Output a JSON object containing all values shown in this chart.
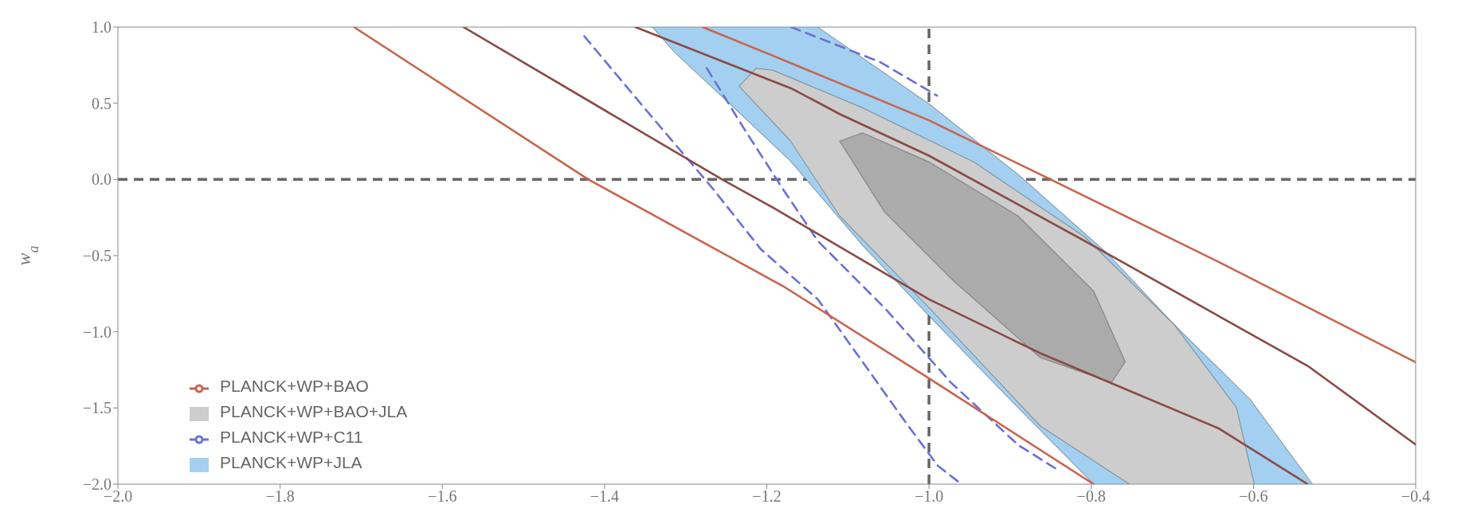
{
  "chart_data": {
    "type": "line",
    "ylabel": "w$_{a}$",
    "xlim": [
      -2.0,
      -0.4
    ],
    "xticks": [
      {
        "value": -2.0,
        "label": "−2.0"
      },
      {
        "value": -1.8,
        "label": "−1.8"
      },
      {
        "value": -1.6,
        "label": "−1.6"
      },
      {
        "value": -1.4,
        "label": "−1.4"
      },
      {
        "value": -1.2,
        "label": "−1.2"
      },
      {
        "value": -1.0,
        "label": "−1.0"
      },
      {
        "value": -0.8,
        "label": "−0.8"
      },
      {
        "value": -0.6,
        "label": "−0.6"
      },
      {
        "value": -0.4,
        "label": "−0.4"
      }
    ],
    "ylim": [
      -2.0,
      1.0
    ],
    "yticks": [
      {
        "value": -2.0,
        "label": "−2.0"
      },
      {
        "value": -1.5,
        "label": "−1.5"
      },
      {
        "value": -1.0,
        "label": "−1.0"
      },
      {
        "value": -0.5,
        "label": "−0.5"
      },
      {
        "value": 0,
        "label": "0.0"
      },
      {
        "value": 0.5,
        "label": "0.5"
      },
      {
        "value": 1.0,
        "label": "1.0"
      }
    ],
    "legend": "bottom left",
    "grid": false,
    "ref_lines": [
      {
        "axis": "x",
        "value": -1.0,
        "color": "#666666",
        "line_style": "dashed"
      },
      {
        "axis": "y",
        "value": 0,
        "color": "#666666",
        "line_style": "dashed"
      }
    ],
    "series": [
      {
        "name": "PLANCK+WP+JLA",
        "type": "area",
        "color": "#a3d0f0",
        "x": [
          -1.341,
          -1.137,
          -1.0,
          -0.89,
          -0.78,
          -0.698,
          -0.604,
          -0.527,
          -0.797,
          -0.89,
          -1.0,
          -1.082,
          -1.171,
          -1.25,
          -1.314
        ],
        "values": [
          1.0,
          1.0,
          0.497,
          0.033,
          -0.486,
          -0.951,
          -1.443,
          -2.0,
          -2.0,
          -1.5,
          -0.896,
          -0.432,
          0.121,
          0.518,
          0.835
        ]
      },
      {
        "name": "PLANCK+WP+C11",
        "line_style": "dashed",
        "color": "#6a70d6",
        "x": [
          -1.425,
          -1.346,
          -1.266,
          -1.207,
          -1.137,
          -1.082,
          -1.027,
          -0.989,
          -0.96
        ],
        "values": [
          0.94,
          0.438,
          -0.064,
          -0.46,
          -0.787,
          -1.197,
          -1.607,
          -1.88,
          -2.0
        ]
      },
      {
        "line_style": "dashed",
        "color": "#6a70d6",
        "x": [
          -1.274,
          -1.228,
          -1.18,
          -1.137,
          -1.055,
          -0.973,
          -0.89,
          -0.841
        ],
        "values": [
          0.73,
          0.333,
          -0.064,
          -0.404,
          -0.842,
          -1.333,
          -1.743,
          -1.907
        ]
      },
      {
        "line_style": "dashed",
        "color": "#6a70d6",
        "x": [
          -1.17,
          -1.06,
          -0.99
        ],
        "values": [
          1.0,
          0.77,
          0.55
        ]
      },
      {
        "name": "PLANCK+WP+BAO+JLA",
        "type": "area",
        "color": "#cdcdcd",
        "x": [
          -1.234,
          -1.213,
          -1.192,
          -1.082,
          -0.945,
          -0.808,
          -0.698,
          -0.621,
          -0.599,
          -0.753,
          -0.863,
          -1.0,
          -1.11,
          -1.171
        ],
        "values": [
          0.611,
          0.73,
          0.716,
          0.47,
          0.115,
          -0.377,
          -0.951,
          -1.497,
          -2.0,
          -2.0,
          -1.617,
          -0.842,
          -0.24,
          0.254
        ]
      },
      {
        "type": "area",
        "color": "#ababab",
        "x": [
          -1.11,
          -1.082,
          -1.0,
          -0.89,
          -0.797,
          -0.758,
          -0.775,
          -0.863,
          -0.973,
          -1.055
        ],
        "values": [
          0.251,
          0.306,
          0.115,
          -0.24,
          -0.732,
          -1.197,
          -1.333,
          -1.169,
          -0.65,
          -0.213
        ]
      },
      {
        "name": "PLANCK+WP+BAO",
        "line_style": "solid",
        "color": "#c8644e",
        "x": [
          -1.709,
          -1.42,
          -1.18,
          -1.0,
          -0.797
        ],
        "values": [
          1.0,
          0.0,
          -0.7,
          -1.306,
          -2.0
        ]
      },
      {
        "line_style": "solid",
        "color": "#c8644e",
        "x": [
          -1.279,
          -1.192,
          -1.0,
          -0.852,
          -0.643,
          -0.4
        ],
        "values": [
          1.0,
          0.811,
          0.388,
          0.005,
          -0.541,
          -1.2
        ]
      },
      {
        "line_style": "solid",
        "color": "#8a4a45",
        "x": [
          -1.574,
          -1.255,
          -1.192,
          -1.0,
          -0.863,
          -0.643,
          -0.533
        ],
        "values": [
          1.0,
          0.0,
          -0.186,
          -0.787,
          -1.14,
          -1.634,
          -2.0
        ]
      },
      {
        "line_style": "solid",
        "color": "#8a4a45",
        "x": [
          -1.362,
          -1.17,
          -1.11,
          -1.0,
          -0.808,
          -0.643,
          -0.533,
          -0.4
        ],
        "values": [
          1.0,
          0.598,
          0.429,
          0.156,
          -0.404,
          -0.896,
          -1.224,
          -1.74
        ]
      }
    ]
  }
}
